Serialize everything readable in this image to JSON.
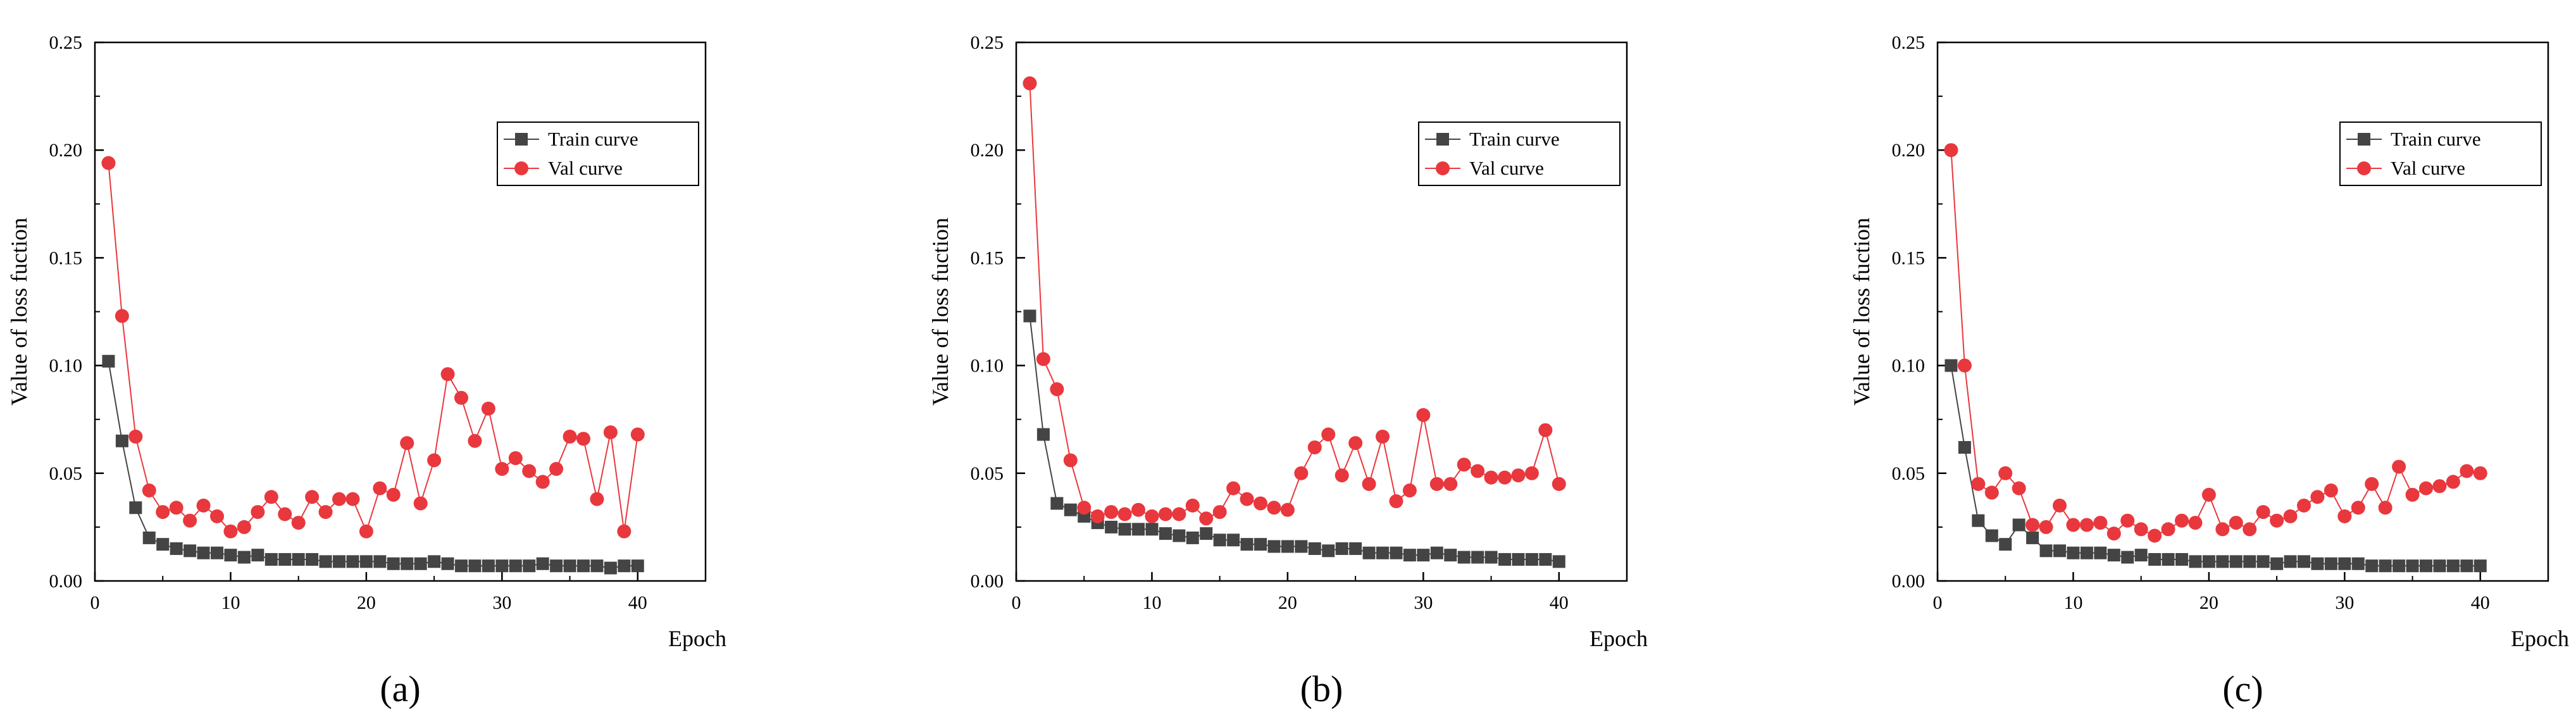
{
  "colors": {
    "train": "#444444",
    "val": "#e8383d",
    "axis": "#000000"
  },
  "chart_data": [
    {
      "type": "line",
      "panel_label": "(a)",
      "xlabel": "Epoch",
      "ylabel": "Value of loss fuction",
      "xlim": [
        0,
        45
      ],
      "ylim": [
        0,
        0.25
      ],
      "xticks": [
        0,
        10,
        20,
        30,
        40
      ],
      "xtick_labels": [
        "0",
        "10",
        "20",
        "30",
        "40"
      ],
      "yticks": [
        0,
        0.05,
        0.1,
        0.15,
        0.2,
        0.25
      ],
      "ytick_labels": [
        "0.00",
        "0.05",
        "0.10",
        "0.15",
        "0.20",
        "0.25"
      ],
      "legend_position": "top-right",
      "x": [
        1,
        2,
        3,
        4,
        5,
        6,
        7,
        8,
        9,
        10,
        11,
        12,
        13,
        14,
        15,
        16,
        17,
        18,
        19,
        20,
        21,
        22,
        23,
        24,
        25,
        26,
        27,
        28,
        29,
        30,
        31,
        32,
        33,
        34,
        35,
        36,
        37,
        38,
        39,
        40
      ],
      "series": [
        {
          "name": "Train curve",
          "marker": "square",
          "values": [
            0.102,
            0.065,
            0.034,
            0.02,
            0.017,
            0.015,
            0.014,
            0.013,
            0.013,
            0.012,
            0.011,
            0.012,
            0.01,
            0.01,
            0.01,
            0.01,
            0.009,
            0.009,
            0.009,
            0.009,
            0.009,
            0.008,
            0.008,
            0.008,
            0.009,
            0.008,
            0.007,
            0.007,
            0.007,
            0.007,
            0.007,
            0.007,
            0.008,
            0.007,
            0.007,
            0.007,
            0.007,
            0.006,
            0.007,
            0.007
          ]
        },
        {
          "name": "Val curve",
          "marker": "circle",
          "values": [
            0.194,
            0.123,
            0.067,
            0.042,
            0.032,
            0.034,
            0.028,
            0.035,
            0.03,
            0.023,
            0.025,
            0.032,
            0.039,
            0.031,
            0.027,
            0.039,
            0.032,
            0.038,
            0.038,
            0.023,
            0.043,
            0.04,
            0.064,
            0.036,
            0.056,
            0.096,
            0.085,
            0.065,
            0.08,
            0.052,
            0.057,
            0.051,
            0.046,
            0.052,
            0.067,
            0.066,
            0.038,
            0.069,
            0.023,
            0.068
          ]
        }
      ]
    },
    {
      "type": "line",
      "panel_label": "(b)",
      "xlabel": "Epoch",
      "ylabel": "Value of loss fuction",
      "xlim": [
        0,
        45
      ],
      "ylim": [
        0,
        0.25
      ],
      "xticks": [
        0,
        10,
        20,
        30,
        40
      ],
      "xtick_labels": [
        "0",
        "10",
        "20",
        "30",
        "40"
      ],
      "yticks": [
        0,
        0.05,
        0.1,
        0.15,
        0.2,
        0.25
      ],
      "ytick_labels": [
        "0.00",
        "0.05",
        "0.10",
        "0.15",
        "0.20",
        "0.25"
      ],
      "legend_position": "top-right",
      "x": [
        1,
        2,
        3,
        4,
        5,
        6,
        7,
        8,
        9,
        10,
        11,
        12,
        13,
        14,
        15,
        16,
        17,
        18,
        19,
        20,
        21,
        22,
        23,
        24,
        25,
        26,
        27,
        28,
        29,
        30,
        31,
        32,
        33,
        34,
        35,
        36,
        37,
        38,
        39,
        40
      ],
      "series": [
        {
          "name": "Train curve",
          "marker": "square",
          "values": [
            0.123,
            0.068,
            0.036,
            0.033,
            0.03,
            0.027,
            0.025,
            0.024,
            0.024,
            0.024,
            0.022,
            0.021,
            0.02,
            0.022,
            0.019,
            0.019,
            0.017,
            0.017,
            0.016,
            0.016,
            0.016,
            0.015,
            0.014,
            0.015,
            0.015,
            0.013,
            0.013,
            0.013,
            0.012,
            0.012,
            0.013,
            0.012,
            0.011,
            0.011,
            0.011,
            0.01,
            0.01,
            0.01,
            0.01,
            0.009
          ]
        },
        {
          "name": "Val curve",
          "marker": "circle",
          "values": [
            0.231,
            0.103,
            0.089,
            0.056,
            0.034,
            0.03,
            0.032,
            0.031,
            0.033,
            0.03,
            0.031,
            0.031,
            0.035,
            0.029,
            0.032,
            0.043,
            0.038,
            0.036,
            0.034,
            0.033,
            0.05,
            0.062,
            0.068,
            0.049,
            0.064,
            0.045,
            0.067,
            0.037,
            0.042,
            0.077,
            0.045,
            0.045,
            0.054,
            0.051,
            0.048,
            0.048,
            0.049,
            0.05,
            0.07,
            0.045
          ]
        }
      ]
    },
    {
      "type": "line",
      "panel_label": "(c)",
      "xlabel": "Epoch",
      "ylabel": "Value of loss fuction",
      "xlim": [
        0,
        45
      ],
      "ylim": [
        0,
        0.25
      ],
      "xticks": [
        0,
        10,
        20,
        30,
        40
      ],
      "xtick_labels": [
        "0",
        "10",
        "20",
        "30",
        "40"
      ],
      "yticks": [
        0,
        0.05,
        0.1,
        0.15,
        0.2,
        0.25
      ],
      "ytick_labels": [
        "0.00",
        "0.05",
        "0.10",
        "0.15",
        "0.20",
        "0.25"
      ],
      "legend_position": "top-right",
      "x": [
        1,
        2,
        3,
        4,
        5,
        6,
        7,
        8,
        9,
        10,
        11,
        12,
        13,
        14,
        15,
        16,
        17,
        18,
        19,
        20,
        21,
        22,
        23,
        24,
        25,
        26,
        27,
        28,
        29,
        30,
        31,
        32,
        33,
        34,
        35,
        36,
        37,
        38,
        39,
        40
      ],
      "series": [
        {
          "name": "Train curve",
          "marker": "square",
          "values": [
            0.1,
            0.062,
            0.028,
            0.021,
            0.017,
            0.026,
            0.02,
            0.014,
            0.014,
            0.013,
            0.013,
            0.013,
            0.012,
            0.011,
            0.012,
            0.01,
            0.01,
            0.01,
            0.009,
            0.009,
            0.009,
            0.009,
            0.009,
            0.009,
            0.008,
            0.009,
            0.009,
            0.008,
            0.008,
            0.008,
            0.008,
            0.007,
            0.007,
            0.007,
            0.007,
            0.007,
            0.007,
            0.007,
            0.007,
            0.007
          ]
        },
        {
          "name": "Val curve",
          "marker": "circle",
          "values": [
            0.2,
            0.1,
            0.045,
            0.041,
            0.05,
            0.043,
            0.026,
            0.025,
            0.035,
            0.026,
            0.026,
            0.027,
            0.022,
            0.028,
            0.024,
            0.021,
            0.024,
            0.028,
            0.027,
            0.04,
            0.024,
            0.027,
            0.024,
            0.032,
            0.028,
            0.03,
            0.035,
            0.039,
            0.042,
            0.03,
            0.034,
            0.045,
            0.034,
            0.053,
            0.04,
            0.043,
            0.044,
            0.046,
            0.051,
            0.05
          ]
        }
      ]
    }
  ]
}
